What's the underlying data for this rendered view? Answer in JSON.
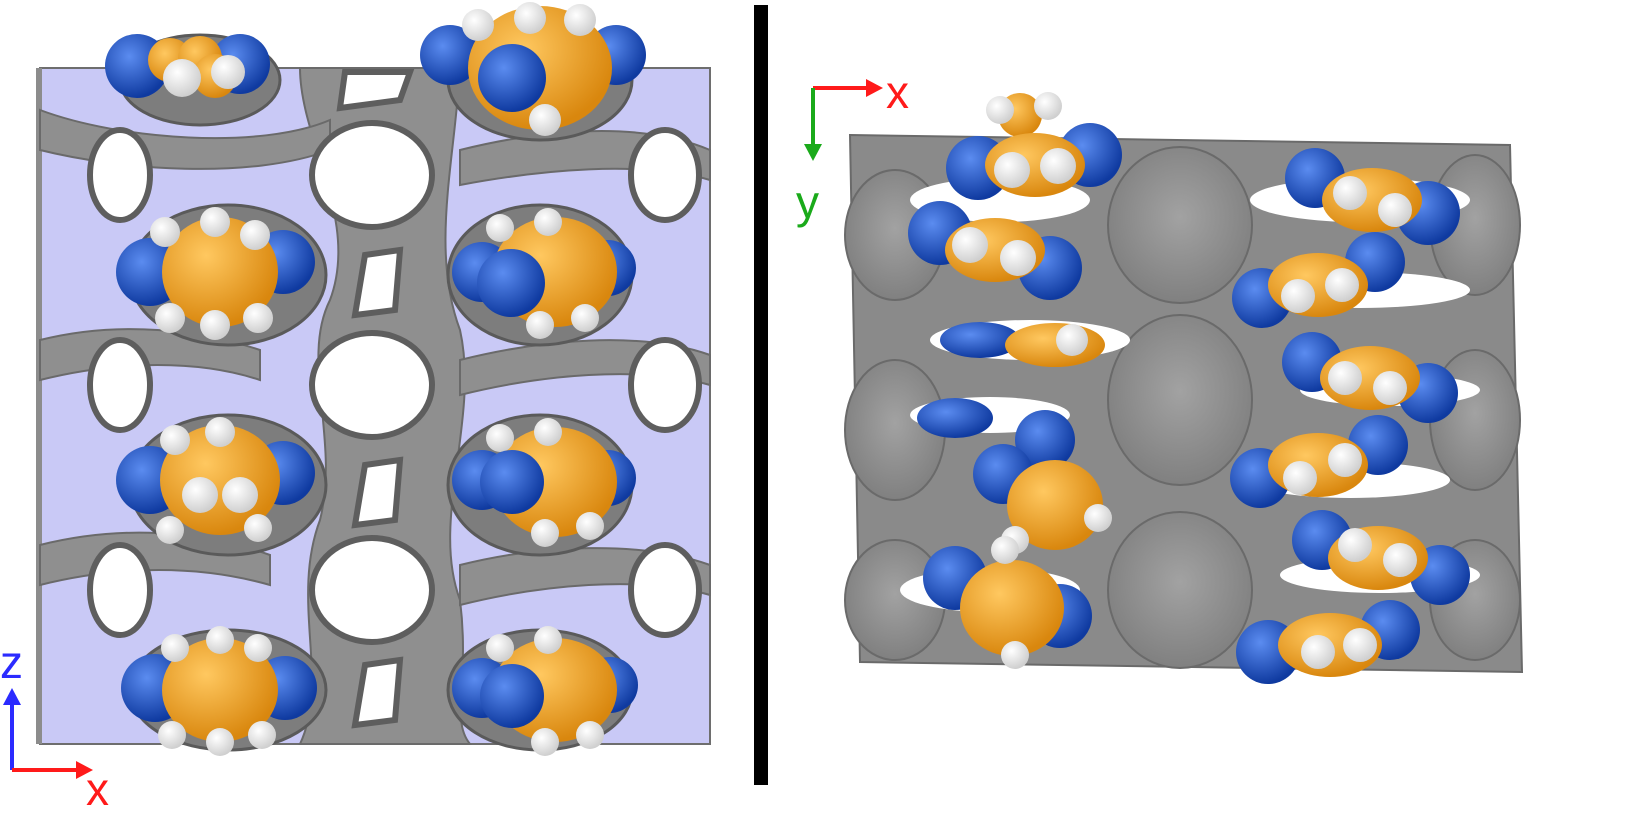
{
  "panels": [
    {
      "id": "left",
      "view": "xz-plane",
      "axes": [
        {
          "label": "z",
          "direction": "up",
          "color": "#2b2bff"
        },
        {
          "label": "x",
          "direction": "right",
          "color": "#ff1a1a"
        }
      ]
    },
    {
      "id": "right",
      "view": "xy-plane",
      "axes": [
        {
          "label": "x",
          "direction": "right",
          "color": "#ff1a1a"
        },
        {
          "label": "y",
          "direction": "down",
          "color": "#1aaa1a"
        }
      ]
    }
  ],
  "colors": {
    "slab": "#c9c9f6",
    "framework": "#8c8c8c",
    "framework_dark": "#6e6e6e",
    "divider": "#000000",
    "nitrogen": "#1651c9",
    "carbon": "#f4a31d",
    "hydrogen": "#f2f2f2"
  },
  "icons": [
    "molecule-icon",
    "axis-arrow-icon"
  ]
}
